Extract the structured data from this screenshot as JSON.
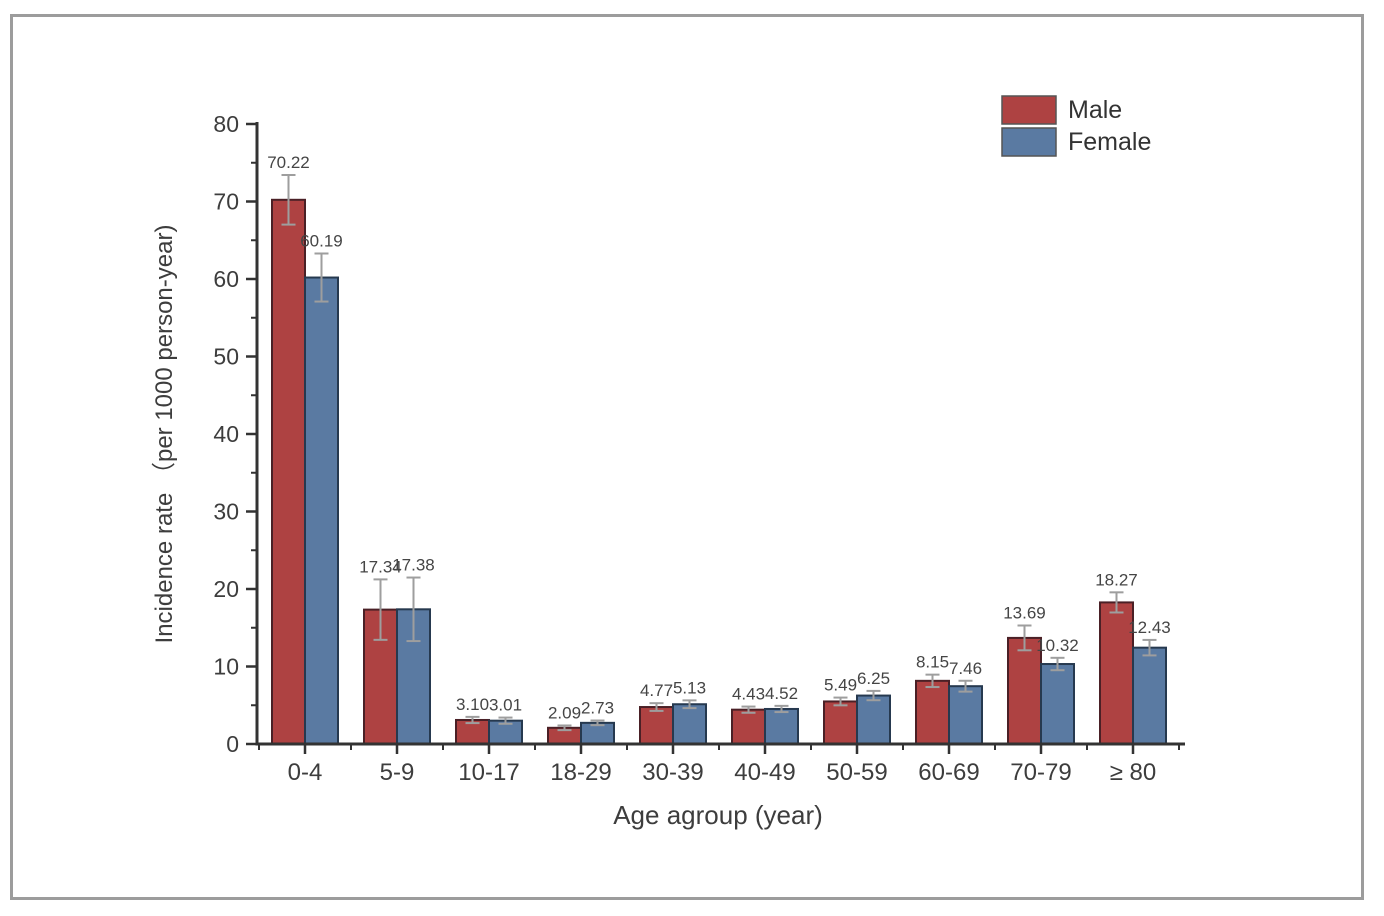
{
  "figure": {
    "background": "#ffffff",
    "frame_border_color": "#9c9c9c"
  },
  "chart_data": {
    "type": "bar",
    "title": "",
    "xlabel": "Age agroup (year)",
    "ylabel": "Incidence rate （per 1000 person-year)",
    "categories": [
      "0-4",
      "5-9",
      "10-17",
      "18-29",
      "30-39",
      "40-49",
      "50-59",
      "60-69",
      "70-79",
      "≥ 80"
    ],
    "series": [
      {
        "name": "Male",
        "color": "#ae4242",
        "edge_color": "#4a2026",
        "values": [
          70.22,
          17.34,
          3.1,
          2.09,
          4.77,
          4.43,
          5.49,
          8.15,
          13.69,
          18.27
        ],
        "errors": [
          3.2,
          3.9,
          0.4,
          0.3,
          0.5,
          0.4,
          0.5,
          0.8,
          1.6,
          1.3
        ]
      },
      {
        "name": "Female",
        "color": "#5a7aa2",
        "edge_color": "#26394f",
        "values": [
          60.19,
          17.38,
          3.01,
          2.73,
          5.13,
          4.52,
          6.25,
          7.46,
          10.32,
          12.43
        ],
        "errors": [
          3.1,
          4.1,
          0.4,
          0.3,
          0.5,
          0.4,
          0.6,
          0.7,
          0.8,
          1.0
        ]
      }
    ],
    "ylim": [
      0,
      80
    ],
    "yticks": [
      0,
      10,
      20,
      30,
      40,
      50,
      60,
      70,
      80
    ],
    "ytick_minor_step": 5,
    "value_label_decimals": 2,
    "grid": false,
    "error_bars": true,
    "error_bar_color": "#9e9e9e",
    "axis_color": "#333333",
    "text_color": "#3d3d3d",
    "value_label_color": "#454545",
    "legend": {
      "position": "top-right",
      "entries": [
        "Male",
        "Female"
      ]
    }
  }
}
